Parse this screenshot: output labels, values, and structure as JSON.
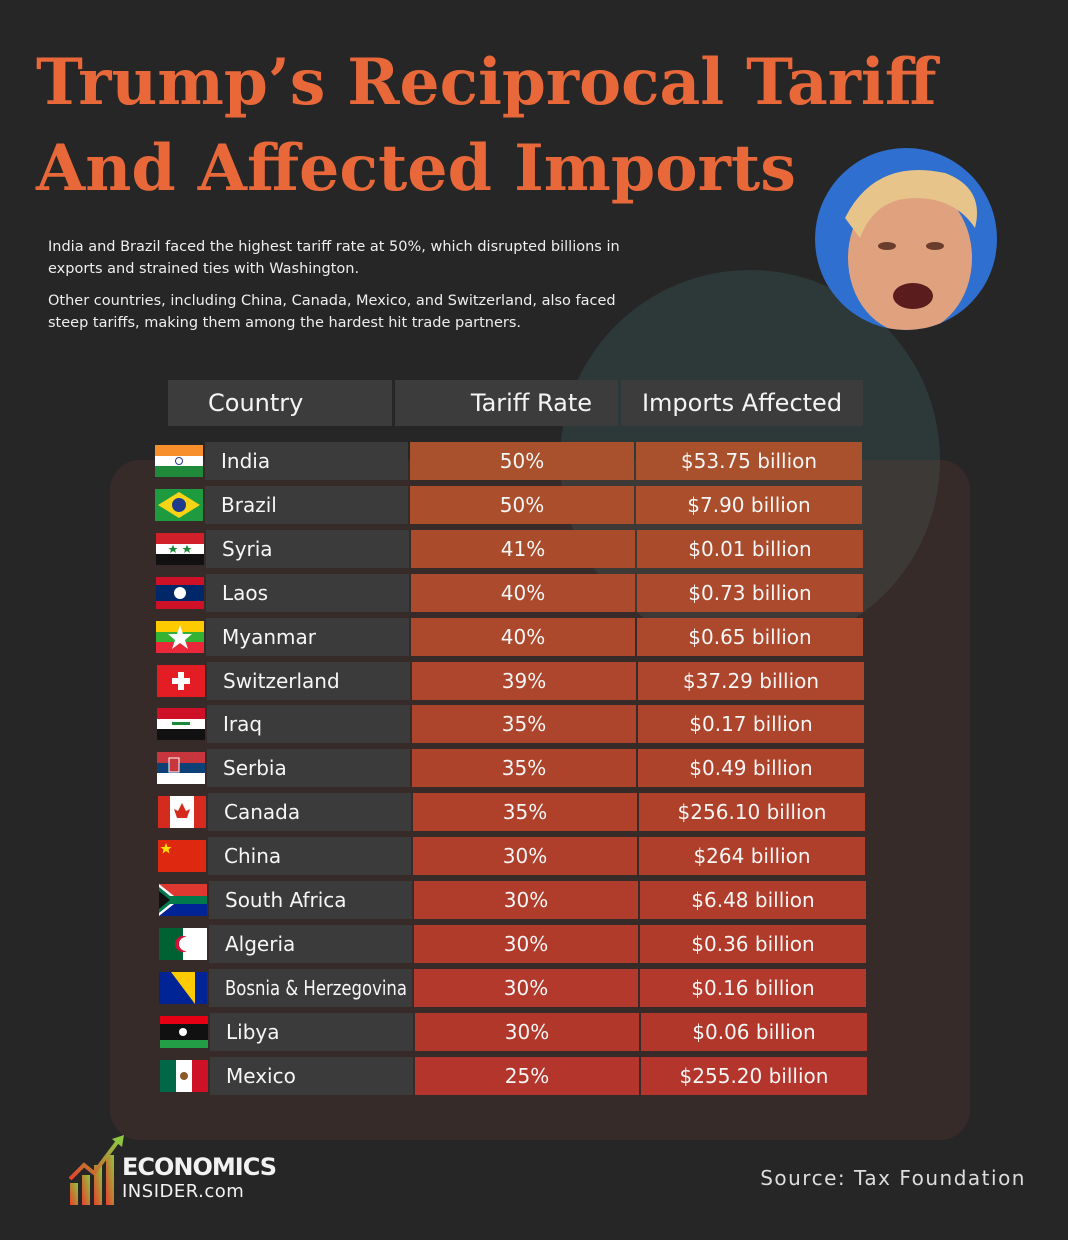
{
  "title_line1": "Trump’s Reciprocal Tariff",
  "title_line2": "And Affected Imports",
  "intro": [
    "India and Brazil faced the highest tariff rate at 50%, which disrupted billions in exports and strained ties with Washington.",
    "Other countries, including China, Canada, Mexico, and Switzerland, also faced steep tariffs, making them among the hardest hit trade partners."
  ],
  "colors": {
    "title": "#e8683a",
    "background": "#262626",
    "header_cell": "#3c3c3c",
    "rate_cell_top": "#a9502c",
    "rate_cell_bottom": "#b3352b"
  },
  "chart_data": {
    "type": "table",
    "columns": [
      "Country",
      "Tariff Rate",
      "Imports Affected"
    ],
    "rows": [
      {
        "flag": "flag-india",
        "country": "India",
        "rate": "50%",
        "imports": "$53.75 billion"
      },
      {
        "flag": "flag-brazil",
        "country": "Brazil",
        "rate": "50%",
        "imports": "$7.90 billion"
      },
      {
        "flag": "flag-syria",
        "country": "Syria",
        "rate": "41%",
        "imports": "$0.01 billion"
      },
      {
        "flag": "flag-laos",
        "country": "Laos",
        "rate": "40%",
        "imports": "$0.73 billion"
      },
      {
        "flag": "flag-myanmar",
        "country": "Myanmar",
        "rate": "40%",
        "imports": "$0.65 billion"
      },
      {
        "flag": "flag-switzerland",
        "country": "Switzerland",
        "rate": "39%",
        "imports": "$37.29 billion"
      },
      {
        "flag": "flag-iraq",
        "country": "Iraq",
        "rate": "35%",
        "imports": "$0.17 billion"
      },
      {
        "flag": "flag-serbia",
        "country": "Serbia",
        "rate": "35%",
        "imports": "$0.49 billion"
      },
      {
        "flag": "flag-canada",
        "country": "Canada",
        "rate": "35%",
        "imports": "$256.10 billion"
      },
      {
        "flag": "flag-china",
        "country": "China",
        "rate": "30%",
        "imports": "$264 billion"
      },
      {
        "flag": "flag-south-africa",
        "country": "South Africa",
        "rate": "30%",
        "imports": "$6.48 billion"
      },
      {
        "flag": "flag-algeria",
        "country": "Algeria",
        "rate": "30%",
        "imports": "$0.36 billion"
      },
      {
        "flag": "flag-bosnia",
        "country": "Bosnia & Herzegovina",
        "rate": "30%",
        "imports": "$0.16 billion"
      },
      {
        "flag": "flag-libya",
        "country": "Libya",
        "rate": "30%",
        "imports": "$0.06 billion"
      },
      {
        "flag": "flag-mexico",
        "country": "Mexico",
        "rate": "25%",
        "imports": "$255.20 billion"
      }
    ]
  },
  "logo": {
    "line1": "ECONOMICS",
    "line2": "INSIDER.com"
  },
  "source": "Source: Tax Foundation"
}
